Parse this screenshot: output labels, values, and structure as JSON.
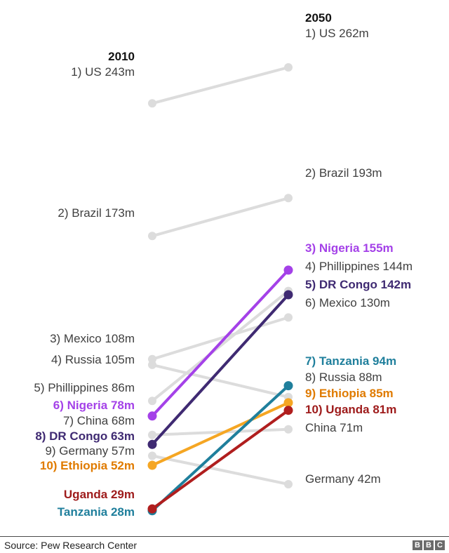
{
  "chart_data": {
    "type": "slope",
    "left_heading": "2010",
    "right_heading": "2050",
    "highlight_color_default": "#bfbfbf",
    "series": [
      {
        "name": "US",
        "v2010": 243,
        "v2050": 262,
        "left_label": "1) US 243m",
        "right_label": "1) US 262m",
        "highlight": false,
        "color": "#dcdcdc"
      },
      {
        "name": "Brazil",
        "v2010": 173,
        "v2050": 193,
        "left_label": "2) Brazil 173m",
        "right_label": "2) Brazil 193m",
        "highlight": false,
        "color": "#dcdcdc"
      },
      {
        "name": "Mexico",
        "v2010": 108,
        "v2050": 130,
        "left_label": "3) Mexico 108m",
        "right_label": "6) Mexico 130m",
        "highlight": false,
        "color": "#dcdcdc"
      },
      {
        "name": "Russia",
        "v2010": 105,
        "v2050": 88,
        "left_label": "4) Russia 105m",
        "right_label": "8) Russia 88m",
        "highlight": false,
        "color": "#dcdcdc"
      },
      {
        "name": "Phillippines",
        "v2010": 86,
        "v2050": 144,
        "left_label": "5) Phillippines 86m",
        "right_label": "4) Phillippines 144m",
        "highlight": false,
        "color": "#dcdcdc"
      },
      {
        "name": "China",
        "v2010": 68,
        "v2050": 71,
        "left_label": "7) China 68m",
        "right_label": "China 71m",
        "highlight": false,
        "color": "#dcdcdc"
      },
      {
        "name": "Germany",
        "v2010": 57,
        "v2050": 42,
        "left_label": "9) Germany 57m",
        "right_label": "Germany 42m",
        "highlight": false,
        "color": "#dcdcdc"
      },
      {
        "name": "Ethiopia",
        "v2010": 52,
        "v2050": 85,
        "left_label": "10) Ethiopia 52m",
        "right_label": "9) Ethiopia 85m",
        "highlight": true,
        "color": "#f5a623",
        "label_color": "#e07b00"
      },
      {
        "name": "Tanzania",
        "v2010": 28,
        "v2050": 94,
        "left_label": "Tanzania 28m",
        "right_label": "7) Tanzania 94m",
        "highlight": true,
        "color": "#1f7f9c",
        "label_color": "#1f7f9c"
      },
      {
        "name": "Uganda",
        "v2010": 29,
        "v2050": 81,
        "left_label": "Uganda 29m",
        "right_label": "10) Uganda 81m",
        "highlight": true,
        "color": "#b01e1e",
        "label_color": "#9e1b1b"
      },
      {
        "name": "DR Congo",
        "v2010": 63,
        "v2050": 142,
        "left_label": "8) DR Congo 63m",
        "right_label": "5) DR Congo 142m",
        "highlight": true,
        "color": "#3f2a72",
        "label_color": "#3f2a72"
      },
      {
        "name": "Nigeria",
        "v2010": 78,
        "v2050": 155,
        "left_label": "6) Nigeria 78m",
        "right_label": "3) Nigeria 155m",
        "highlight": true,
        "color": "#a441e8",
        "label_color": "#a441e8"
      }
    ]
  },
  "footer": {
    "source": "Source: Pew Research Center",
    "logo": [
      "B",
      "B",
      "C"
    ]
  }
}
